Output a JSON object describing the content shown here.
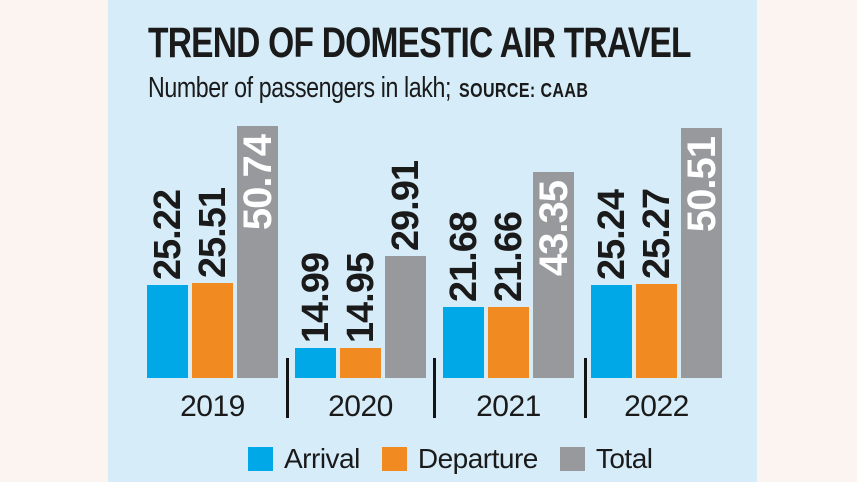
{
  "page": {
    "background": "#fcf4f1"
  },
  "panel": {
    "background": "#d6ecf8"
  },
  "header": {
    "title": "TREND OF DOMESTIC AIR TRAVEL",
    "subtitle": "Number of passengers in lakh;",
    "source": "SOURCE: CAAB",
    "text_color": "#1a1a1a"
  },
  "chart_data": {
    "type": "bar",
    "title": "TREND OF DOMESTIC AIR TRAVEL",
    "unit": "Number of passengers in lakh",
    "source": "CAAB",
    "categories": [
      "2019",
      "2020",
      "2021",
      "2022"
    ],
    "series": [
      {
        "name": "Arrival",
        "color": "#00a8e8",
        "values": [
          25.22,
          14.99,
          21.68,
          25.24
        ]
      },
      {
        "name": "Departure",
        "color": "#f18a21",
        "values": [
          25.51,
          14.95,
          21.66,
          25.27
        ]
      },
      {
        "name": "Total",
        "color": "#97999c",
        "values": [
          50.74,
          29.91,
          43.35,
          50.51
        ]
      }
    ],
    "value_label_rotation": -90,
    "value_label_decimals": 2,
    "total_label_inside_min": 40,
    "legend_position": "bottom",
    "axes_hidden": true,
    "baseline_not_zero": true
  },
  "legend": {
    "items": [
      {
        "label": "Arrival",
        "color": "#00a8e8"
      },
      {
        "label": "Departure",
        "color": "#f18a21"
      },
      {
        "label": "Total",
        "color": "#97999c"
      }
    ]
  },
  "style": {
    "value_label_color": "#1a1a1a",
    "value_label_inside_color": "#ffffff",
    "divider_color": "#141414"
  }
}
